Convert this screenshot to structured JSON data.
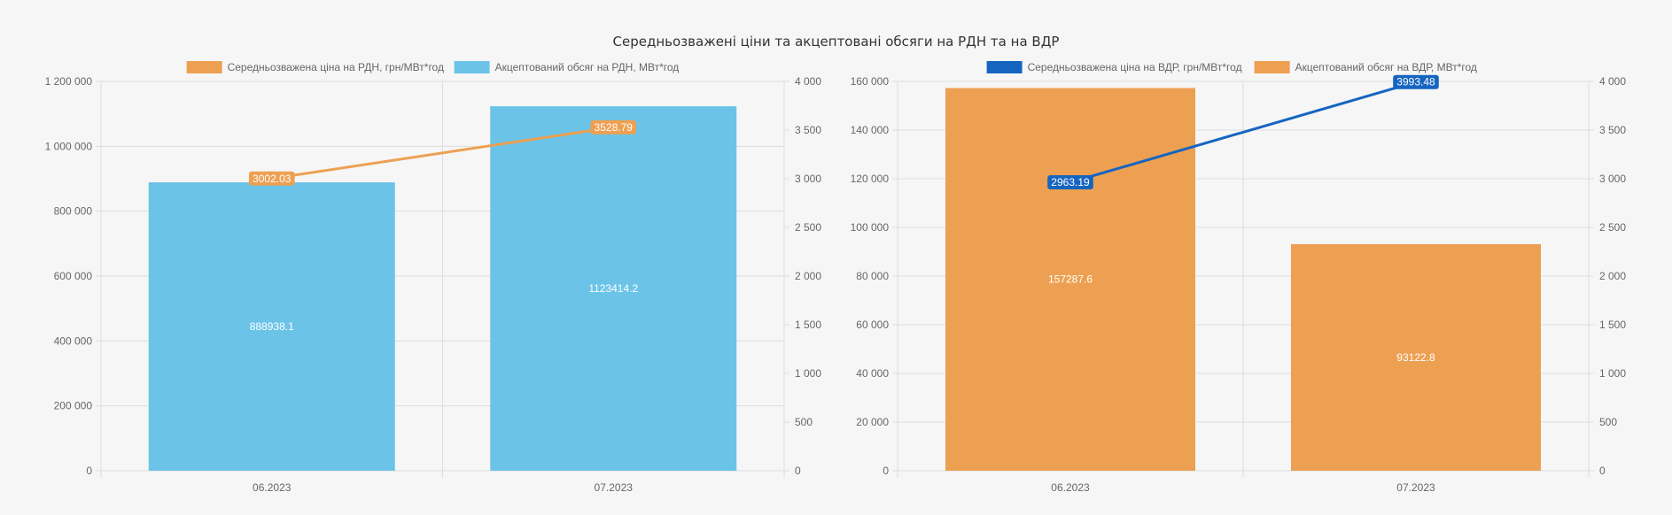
{
  "title": "Середньозважені ціни та акцептовані обсяги на РДН та на ВДР",
  "colors": {
    "blue_bar": "#6bc4e8",
    "orange": "#eda052",
    "blue_line": "#1565c0",
    "grid": "#dddddd"
  },
  "chart_data": [
    {
      "type": "bar",
      "categories": [
        "06.2023",
        "07.2023"
      ],
      "series": [
        {
          "name": "Акцептований обсяг на РДН, МВт*год",
          "kind": "bar",
          "axis": "left",
          "color": "#6bc4e8",
          "values": [
            888938.1,
            1123414.2
          ],
          "labels": [
            "888938.1",
            "1123414.2"
          ]
        },
        {
          "name": "Середньозважена ціна на РДН, грн/МВт*год",
          "kind": "line",
          "axis": "right",
          "color": "#eda052",
          "values": [
            3002.03,
            3528.79
          ],
          "labels": [
            "3002.03",
            "3528.79"
          ]
        }
      ],
      "legend_order": [
        1,
        0
      ],
      "ylim_left": [
        0,
        1200000
      ],
      "yticks_left": [
        "0",
        "200 000",
        "400 000",
        "600 000",
        "800 000",
        "1 000 000",
        "1 200 000"
      ],
      "ylim_right": [
        0,
        4000
      ],
      "yticks_right": [
        "0",
        "500",
        "1 000",
        "1 500",
        "2 000",
        "2 500",
        "3 000",
        "3 500",
        "4 000"
      ],
      "grid": true,
      "legend_position": "top"
    },
    {
      "type": "bar",
      "categories": [
        "06.2023",
        "07.2023"
      ],
      "series": [
        {
          "name": "Акцептований обсяг на ВДР, МВт*год",
          "kind": "bar",
          "axis": "left",
          "color": "#eda052",
          "values": [
            157287.6,
            93122.8
          ],
          "labels": [
            "157287.6",
            "93122.8"
          ]
        },
        {
          "name": "Середньозважена ціна на ВДР, грн/МВт*год",
          "kind": "line",
          "axis": "right",
          "color": "#1565c0",
          "values": [
            2963.19,
            3993.48
          ],
          "labels": [
            "2963.19",
            "3993.48"
          ]
        }
      ],
      "legend_order": [
        1,
        0
      ],
      "ylim_left": [
        0,
        160000
      ],
      "yticks_left": [
        "0",
        "20 000",
        "40 000",
        "60 000",
        "80 000",
        "100 000",
        "120 000",
        "140 000",
        "160 000"
      ],
      "ylim_right": [
        0,
        4000
      ],
      "yticks_right": [
        "0",
        "500",
        "1 000",
        "1 500",
        "2 000",
        "2 500",
        "3 000",
        "3 500",
        "4 000"
      ],
      "grid": true,
      "legend_position": "top"
    }
  ]
}
